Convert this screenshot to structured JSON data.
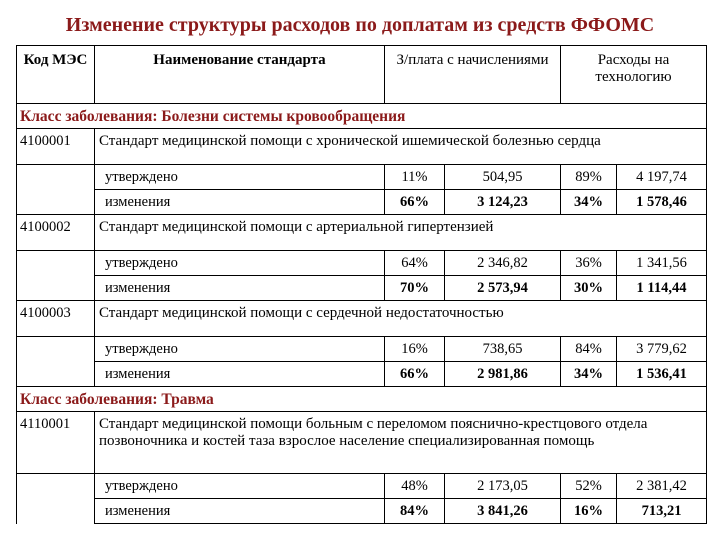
{
  "title": "Изменение структуры расходов по доплатам из средств ФФОМС",
  "headers": {
    "code": "Код МЭС",
    "name": "Наименование стандарта",
    "salary": "З/плата с начислениями",
    "tech": "Расходы на технологию"
  },
  "sections": [
    {
      "class_label": "Класс заболевания: Болезни системы кровообращения",
      "standards": [
        {
          "code": "4100001",
          "name": "Стандарт медицинской помощи с хронической ишемической болезнью сердца",
          "rows": [
            {
              "label": "утверждено",
              "pct1": "11%",
              "val1": "504,95",
              "pct2": "89%",
              "val2": "4 197,74"
            },
            {
              "label": "изменения",
              "pct1": "66%",
              "val1": "3 124,23",
              "pct2": "34%",
              "val2": "1 578,46"
            }
          ]
        },
        {
          "code": "4100002",
          "name": "Стандарт медицинской помощи с артериальной гипертензией",
          "rows": [
            {
              "label": "утверждено",
              "pct1": "64%",
              "val1": "2 346,82",
              "pct2": "36%",
              "val2": "1 341,56"
            },
            {
              "label": "изменения",
              "pct1": "70%",
              "val1": "2 573,94",
              "pct2": "30%",
              "val2": "1 114,44"
            }
          ]
        },
        {
          "code": "4100003",
          "name": "Стандарт медицинской помощи с сердечной недостаточностью",
          "rows": [
            {
              "label": "утверждено",
              "pct1": "16%",
              "val1": "738,65",
              "pct2": "84%",
              "val2": "3 779,62"
            },
            {
              "label": "изменения",
              "pct1": "66%",
              "val1": "2 981,86",
              "pct2": "34%",
              "val2": "1 536,41"
            }
          ]
        }
      ]
    },
    {
      "class_label": "Класс заболевания: Травма",
      "standards": [
        {
          "code": "4110001",
          "name": "Стандарт медицинской помощи больным с переломом пояснично-крестцового отдела позвоночника и костей таза взрослое население специализированная помощь",
          "rows": [
            {
              "label": "утверждено",
              "pct1": "48%",
              "val1": "2 173,05",
              "pct2": "52%",
              "val2": "2 381,42"
            },
            {
              "label": "изменения",
              "pct1": "84%",
              "val1": "3 841,26",
              "pct2": "16%",
              "val2": "713,21"
            }
          ]
        }
      ]
    }
  ]
}
